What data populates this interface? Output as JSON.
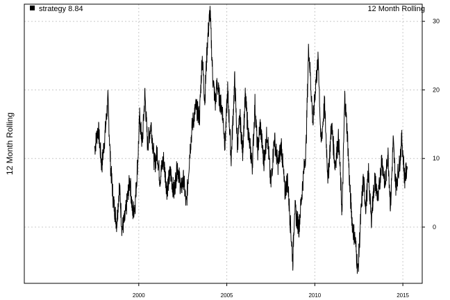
{
  "chart_data": {
    "type": "line",
    "title": "12 Month Rolling",
    "ylabel": "12 Month Rolling",
    "xlabel": "",
    "legend": {
      "placement": "top-left",
      "entry": "strategy 8.84"
    },
    "xlim": [
      1993.5,
      2016.1
    ],
    "ylim": [
      -8.2,
      32.5
    ],
    "x_ticks": [
      2000,
      2005,
      2010,
      2015
    ],
    "y_ticks": [
      0,
      10,
      20,
      30
    ],
    "y_axis_side": "right",
    "grid": true,
    "line_color": "#000000",
    "series": [
      {
        "name": "strategy",
        "x": [
          1997.5,
          1997.7,
          1997.9,
          1998.1,
          1998.25,
          1998.4,
          1998.55,
          1998.75,
          1998.9,
          1999.05,
          1999.2,
          1999.35,
          1999.5,
          1999.65,
          1999.8,
          1999.95,
          2000.05,
          2000.2,
          2000.35,
          2000.5,
          2000.7,
          2000.9,
          2001.05,
          2001.2,
          2001.4,
          2001.6,
          2001.8,
          2002.0,
          2002.2,
          2002.4,
          2002.55,
          2002.7,
          2002.9,
          2003.05,
          2003.25,
          2003.45,
          2003.6,
          2003.75,
          2003.9,
          2004.05,
          2004.2,
          2004.35,
          2004.45,
          2004.6,
          2004.75,
          2004.9,
          2005.05,
          2005.25,
          2005.45,
          2005.6,
          2005.75,
          2005.9,
          2006.05,
          2006.25,
          2006.45,
          2006.6,
          2006.75,
          2006.9,
          2007.1,
          2007.3,
          2007.5,
          2007.7,
          2007.9,
          2008.1,
          2008.3,
          2008.45,
          2008.6,
          2008.75,
          2008.85,
          2008.95,
          2009.1,
          2009.3,
          2009.5,
          2009.65,
          2009.8,
          2009.9,
          2010.05,
          2010.2,
          2010.35,
          2010.55,
          2010.75,
          2010.95,
          2011.15,
          2011.35,
          2011.55,
          2011.7,
          2011.85,
          2012.0,
          2012.15,
          2012.3,
          2012.45,
          2012.6,
          2012.75,
          2012.9,
          2013.05,
          2013.2,
          2013.4,
          2013.6,
          2013.8,
          2014.0,
          2014.15,
          2014.3,
          2014.45,
          2014.6,
          2014.8,
          2014.95,
          2015.1,
          2015.25
        ],
        "values": [
          11.5,
          14.5,
          8.8,
          14.0,
          18.5,
          9.0,
          4.0,
          0.5,
          6.0,
          -0.2,
          1.0,
          4.0,
          7.0,
          2.0,
          3.5,
          10.0,
          16.0,
          12.0,
          19.5,
          12.0,
          15.0,
          9.0,
          11.0,
          7.0,
          10.0,
          5.5,
          8.0,
          5.0,
          9.0,
          5.5,
          7.0,
          3.0,
          11.0,
          15.0,
          17.5,
          16.0,
          25.0,
          18.5,
          27.0,
          31.5,
          22.0,
          18.0,
          21.0,
          18.5,
          17.0,
          12.0,
          20.0,
          10.0,
          21.5,
          12.0,
          16.0,
          11.0,
          19.0,
          13.0,
          9.0,
          18.0,
          11.0,
          15.0,
          9.5,
          14.0,
          6.0,
          13.0,
          9.0,
          12.0,
          5.0,
          7.0,
          1.0,
          -5.0,
          3.0,
          1.5,
          0.0,
          6.0,
          11.5,
          26.5,
          19.5,
          15.0,
          21.0,
          24.5,
          12.0,
          18.0,
          7.0,
          15.0,
          9.0,
          13.0,
          2.0,
          19.0,
          13.5,
          5.0,
          0.0,
          -2.0,
          -6.5,
          1.0,
          7.0,
          3.0,
          8.0,
          1.0,
          7.0,
          4.0,
          10.0,
          6.0,
          11.0,
          3.0,
          12.5,
          6.0,
          9.0,
          13.0,
          7.0,
          8.8
        ]
      }
    ]
  }
}
